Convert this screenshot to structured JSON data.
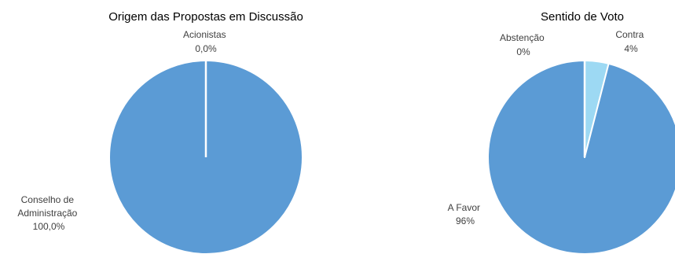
{
  "chart_data": [
    {
      "type": "pie",
      "title": "Origem das Propostas em Discussão",
      "slices": [
        {
          "label_lines": [
            "Acionistas",
            "0,0%"
          ],
          "value": 0.0,
          "color": "#5b9bd5"
        },
        {
          "label_lines": [
            "Conselho de",
            "Administração",
            "100,0%"
          ],
          "value": 100.0,
          "color": "#5b9bd5"
        }
      ],
      "start_angle_deg": 0,
      "direction": "clockwise"
    },
    {
      "type": "pie",
      "title": "Sentido de Voto",
      "slices": [
        {
          "label_lines": [
            "Contra",
            "4%"
          ],
          "value": 4,
          "color": "#9dd9f3"
        },
        {
          "label_lines": [
            "A Favor",
            "96%"
          ],
          "value": 96,
          "color": "#5b9bd5"
        },
        {
          "label_lines": [
            "Abstenção",
            "0%"
          ],
          "value": 0,
          "color": "#5b9bd5"
        }
      ],
      "start_angle_deg": 0,
      "direction": "clockwise"
    }
  ]
}
